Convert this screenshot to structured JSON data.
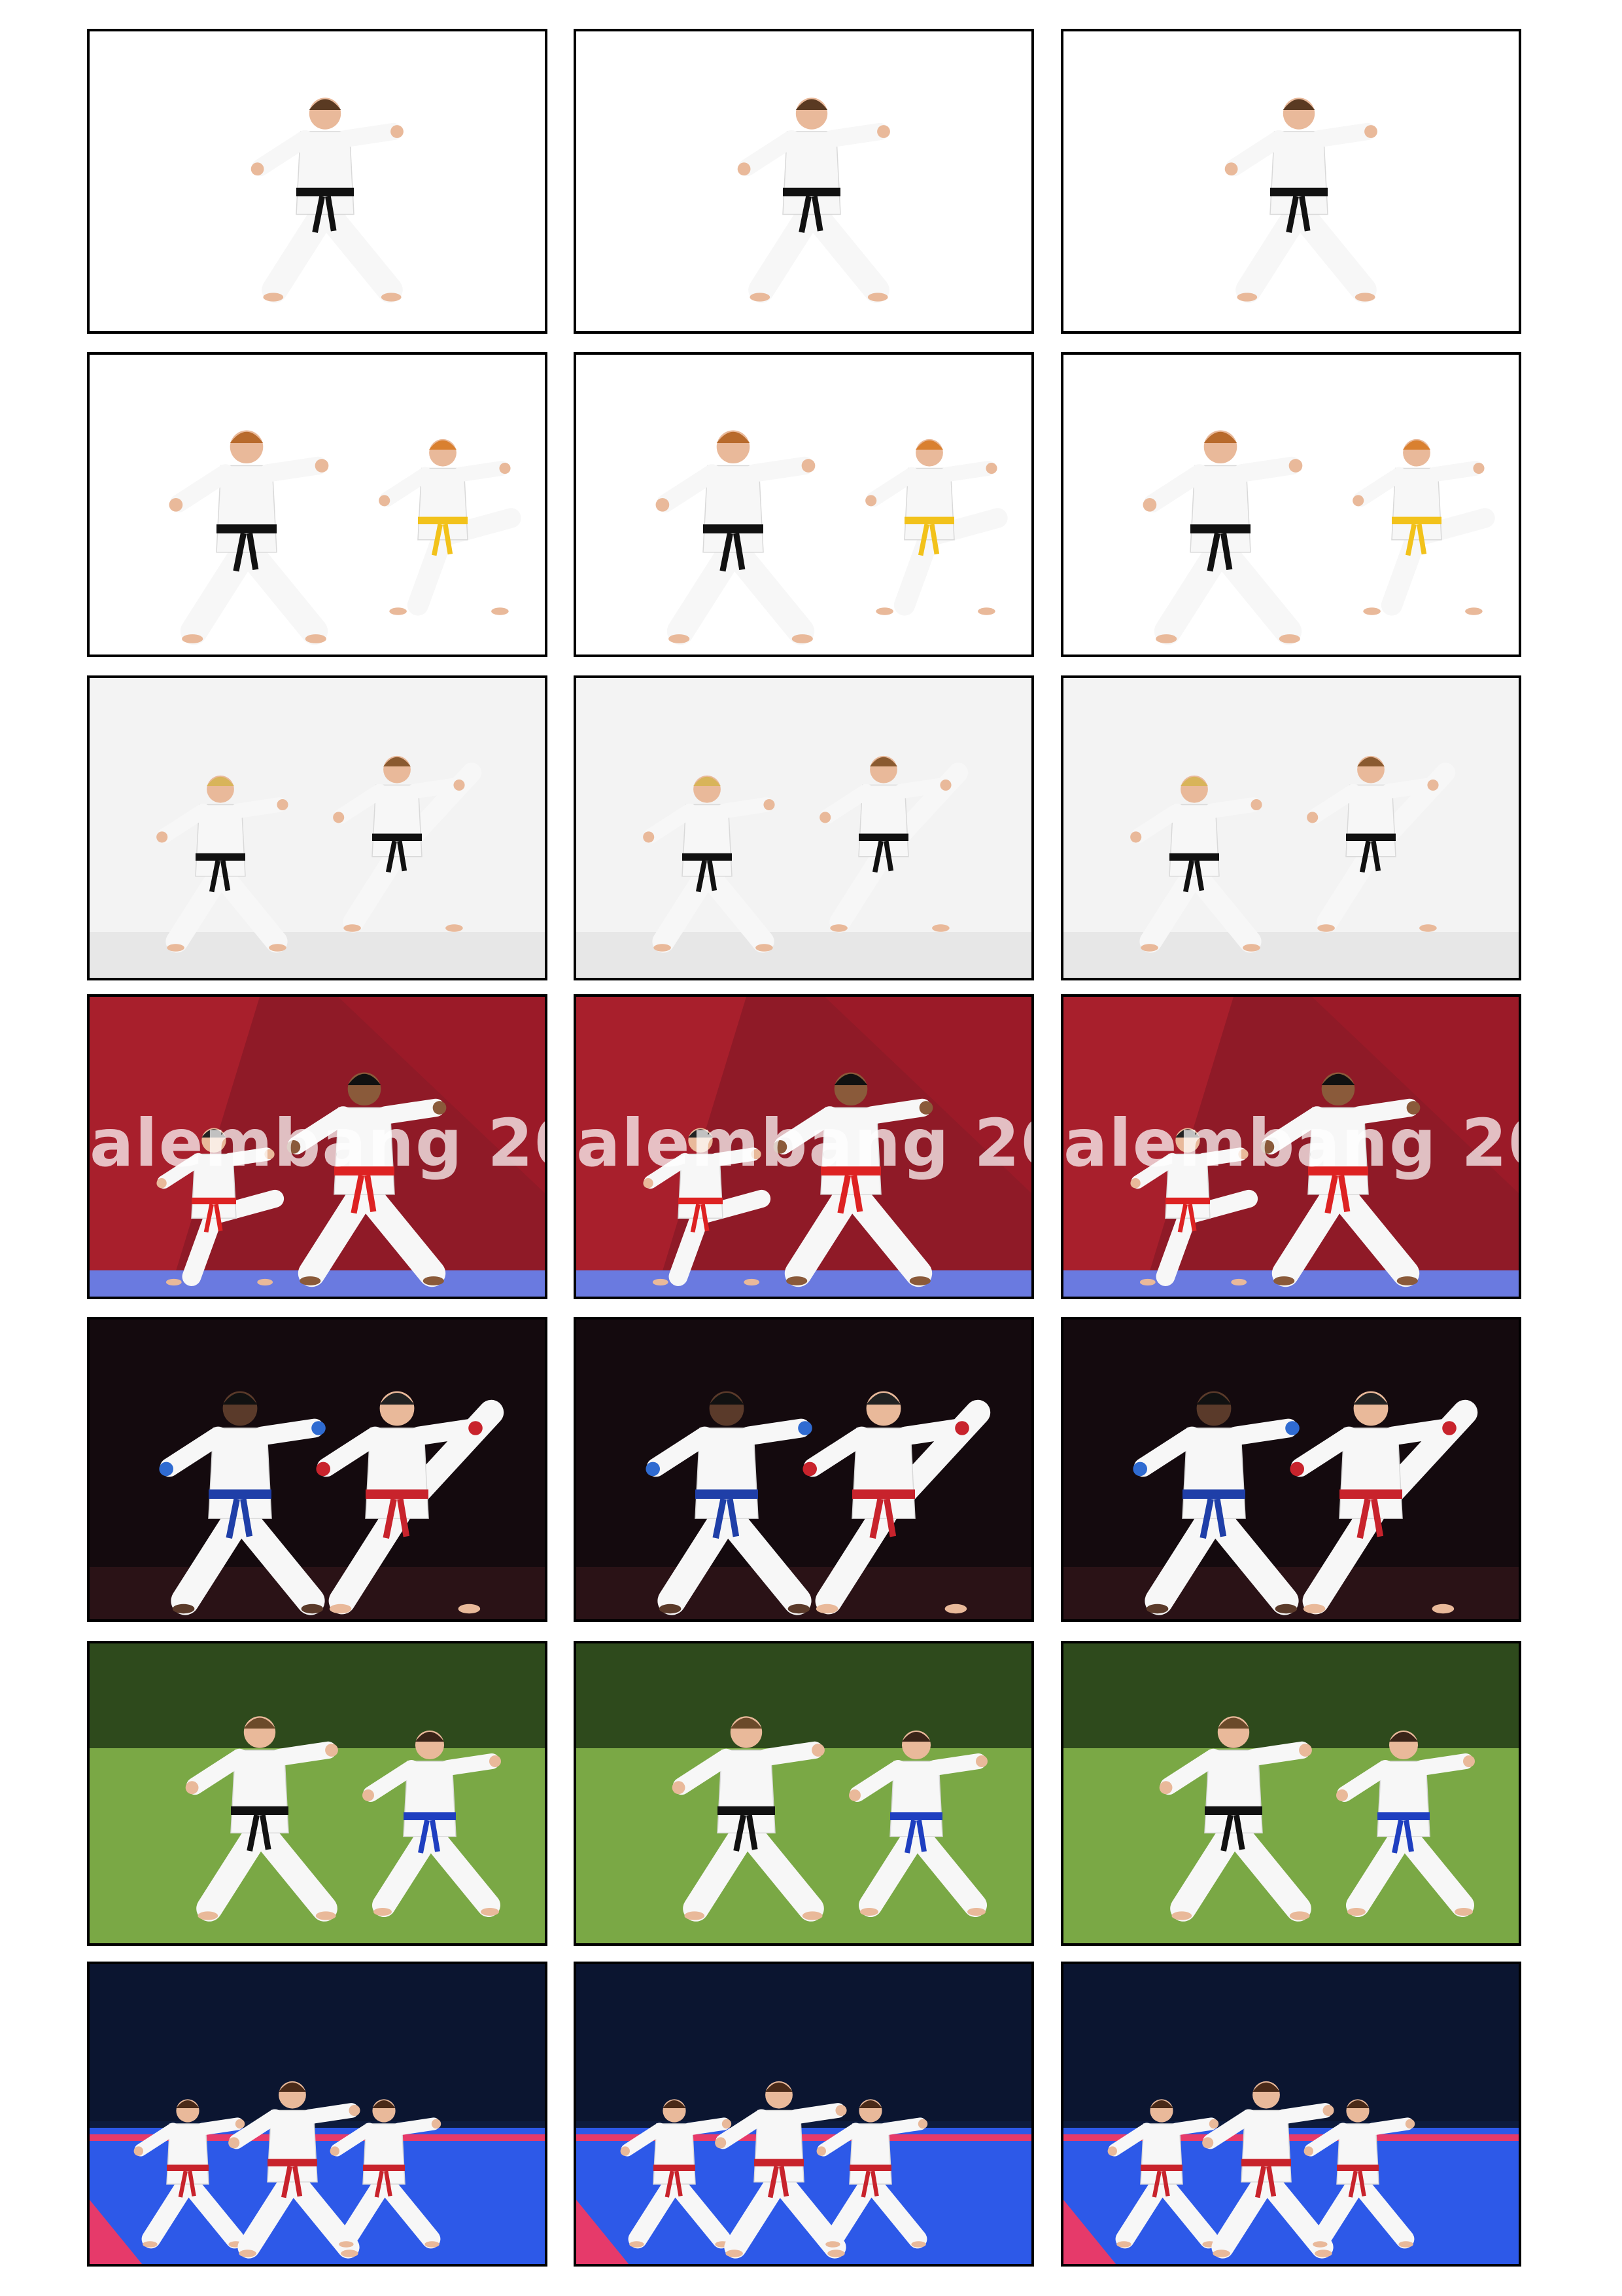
{
  "sheet": {
    "columns": 3,
    "rows": [
      {
        "scene": "single-black-belt-stance",
        "background": "#ffffff"
      },
      {
        "scene": "children-sparring",
        "background": "#ffffff",
        "belt_colors": [
          "#111111",
          "#f2c21b"
        ]
      },
      {
        "scene": "women-high-kick",
        "background": "#f3f3f3"
      },
      {
        "scene": "palembang-competition",
        "background": "#8f1a27",
        "banner_text": "alembang 20"
      },
      {
        "scene": "kumite-headkick",
        "background": "#140a0e",
        "glove_colors": [
          "#c8232c",
          "#2f6bd1"
        ]
      },
      {
        "scene": "outdoor-sparring",
        "background": "#6f9a3d"
      },
      {
        "scene": "team-kata-arena",
        "background": "#0d1b3d",
        "mat_colors": [
          "#2d59e8",
          "#e63a6a"
        ]
      }
    ]
  }
}
